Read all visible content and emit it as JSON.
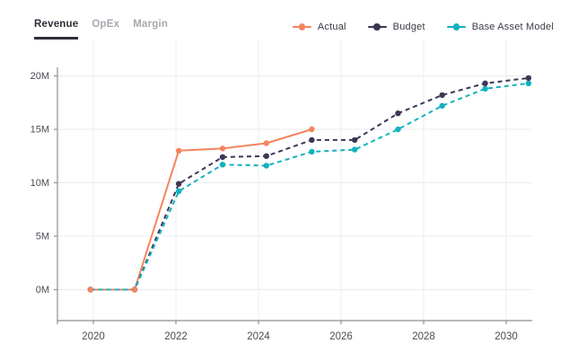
{
  "tabs": {
    "items": [
      {
        "label": "Revenue",
        "active": true
      },
      {
        "label": "OpEx",
        "active": false
      },
      {
        "label": "Margin",
        "active": false
      }
    ]
  },
  "colors": {
    "active_tab": "#2E2E38",
    "inactive_tab": "#A7A8B0",
    "grid": "#ECECF1",
    "axis": "#8E8E96",
    "tick_label": "#4A4A54",
    "legend_text": "#3A3A44",
    "background": "#FFFFFF",
    "actual": "#F4845F",
    "budget": "#3E3556",
    "base_asset_model": "#12B2BF"
  },
  "chart_data": {
    "type": "line",
    "title": "",
    "xlabel": "",
    "ylabel": "",
    "unit": "M",
    "grid": true,
    "legend_position": "top-right",
    "xlim": [
      2019.13,
      2030.63
    ],
    "ylim": [
      -2.9,
      20.8
    ],
    "x_ticks": [
      {
        "value": 2020,
        "label": "2020"
      },
      {
        "value": 2022,
        "label": "2022"
      },
      {
        "value": 2024,
        "label": "2024"
      },
      {
        "value": 2026,
        "label": "2026"
      },
      {
        "value": 2028,
        "label": "2028"
      },
      {
        "value": 2030,
        "label": "2030"
      }
    ],
    "y_ticks": [
      {
        "value": 0,
        "label": "0M"
      },
      {
        "value": 5,
        "label": "5M"
      },
      {
        "value": 10,
        "label": "10M"
      },
      {
        "value": 15,
        "label": "15M"
      },
      {
        "value": 20,
        "label": "20M"
      }
    ],
    "series": [
      {
        "name": "Actual",
        "color": "#F4845F",
        "style": "solid",
        "x": [
          2019.93,
          2021.0,
          2022.07,
          2023.13,
          2024.19,
          2025.29
        ],
        "values": [
          0,
          0,
          13.0,
          13.2,
          13.7,
          15.0
        ]
      },
      {
        "name": "Budget",
        "color": "#3E3556",
        "style": "dashed",
        "x": [
          2019.93,
          2021.0,
          2022.07,
          2023.13,
          2024.19,
          2025.29,
          2026.33,
          2027.38,
          2028.45,
          2029.49,
          2030.54
        ],
        "values": [
          0,
          0,
          9.9,
          12.4,
          12.5,
          14.0,
          14.0,
          16.5,
          18.2,
          19.3,
          19.8
        ]
      },
      {
        "name": "Base Asset Model",
        "color": "#12B2BF",
        "style": "dashed",
        "x": [
          2019.93,
          2021.0,
          2022.07,
          2023.13,
          2024.19,
          2025.29,
          2026.33,
          2027.38,
          2028.45,
          2029.49,
          2030.54
        ],
        "values": [
          0,
          0,
          9.2,
          11.7,
          11.6,
          12.9,
          13.1,
          15.0,
          17.2,
          18.8,
          19.3
        ]
      }
    ]
  }
}
